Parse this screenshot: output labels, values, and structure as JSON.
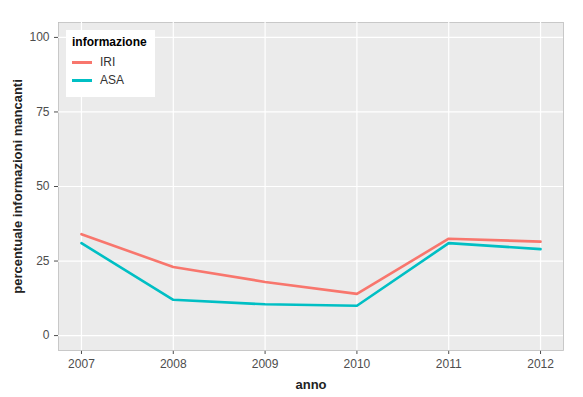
{
  "chart_data": {
    "type": "line",
    "x_label": "anno",
    "y_label": "percentuale informazioni mancanti",
    "legend_title": "informazione",
    "legend": "top-left",
    "grid": true,
    "x": [
      2007,
      2008,
      2009,
      2010,
      2011,
      2012
    ],
    "xlim": [
      2006.75,
      2012.25
    ],
    "xticks": [
      2007,
      2008,
      2009,
      2010,
      2011,
      2012
    ],
    "ylim": [
      -5,
      105
    ],
    "yticks": [
      0,
      25,
      50,
      75,
      100
    ],
    "series": [
      {
        "name": "IRI",
        "color": "#F8766D",
        "values": [
          34,
          23,
          18,
          14,
          32.5,
          31.5
        ]
      },
      {
        "name": "ASA",
        "color": "#00BFC4",
        "values": [
          31,
          12,
          10.5,
          10,
          31,
          29
        ]
      }
    ]
  }
}
